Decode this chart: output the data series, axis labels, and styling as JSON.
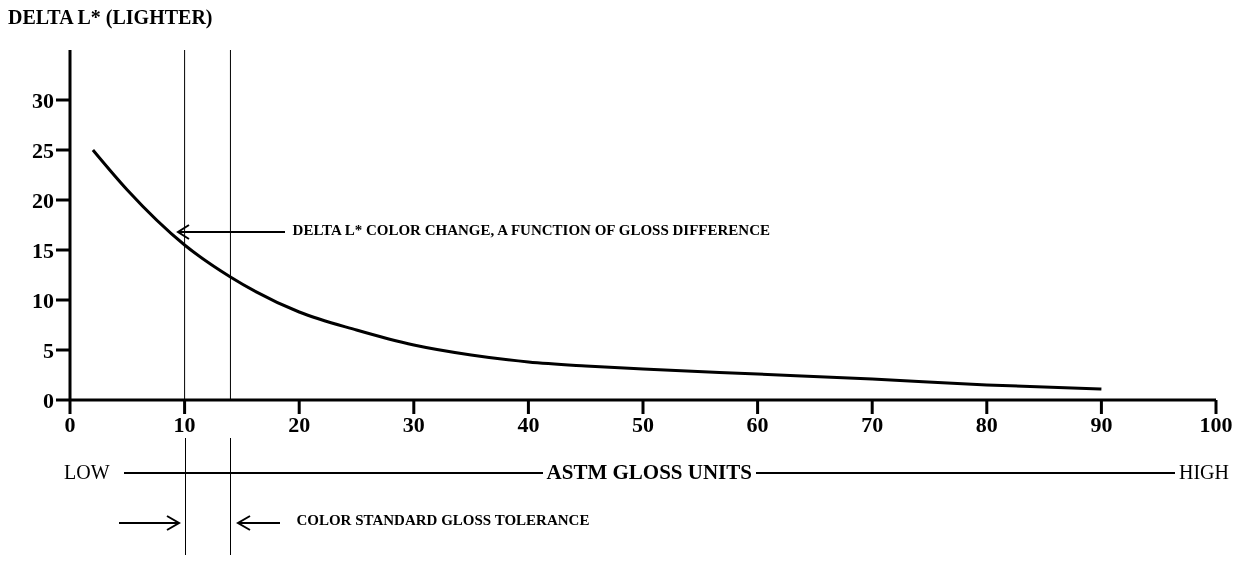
{
  "chart_data": {
    "type": "line",
    "ylabel": "DELTA L* (LIGHTER)",
    "xlabel": "ASTM GLOSS UNITS",
    "x": [
      2,
      5,
      10,
      14,
      20,
      25,
      30,
      35,
      40,
      45,
      50,
      60,
      70,
      80,
      90
    ],
    "series": [
      {
        "color": "#000000",
        "values": [
          25,
          21,
          15.5,
          12.3,
          8.8,
          7,
          5.5,
          4.5,
          3.8,
          3.4,
          3.1,
          2.6,
          2.1,
          1.5,
          1.1
        ]
      }
    ],
    "xlim": [
      0,
      100
    ],
    "xticks": [
      0,
      10,
      20,
      30,
      40,
      50,
      60,
      70,
      80,
      90,
      100
    ],
    "ylim": [
      0,
      35
    ],
    "yticks": [
      0,
      5,
      10,
      15,
      20,
      25,
      30
    ],
    "grid": false,
    "marker": "none",
    "line_style": "solid",
    "ref_lines": [
      {
        "axis": "x",
        "value": 10,
        "color": "#000000"
      },
      {
        "axis": "x",
        "value": 14,
        "color": "#000000"
      }
    ],
    "annotations": [
      {
        "text": "DELTA L* COLOR CHANGE, A FUNCTION OF GLOSS DIFFERENCE",
        "x": 9.3,
        "y": 16.8
      },
      "LOW",
      "HIGH",
      "COLOR STANDARD GLOSS TOLERANCE"
    ]
  }
}
